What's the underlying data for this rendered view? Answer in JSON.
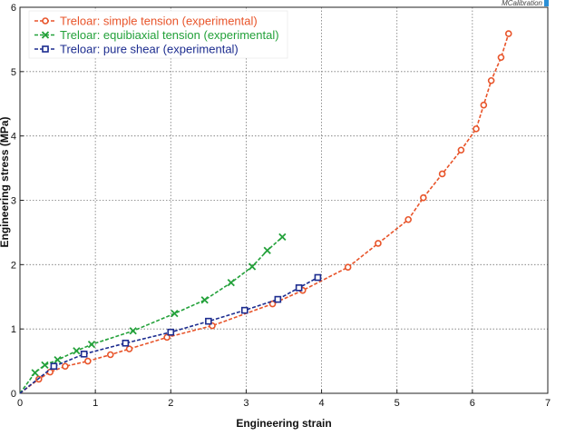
{
  "chart_data": {
    "type": "line",
    "title": "",
    "xlabel": "Engineering strain",
    "ylabel": "Engineering stress (MPa)",
    "xlim": [
      0,
      7
    ],
    "ylim": [
      0,
      6
    ],
    "xticks": [
      0,
      1,
      2,
      3,
      4,
      5,
      6,
      7
    ],
    "yticks": [
      0,
      1,
      2,
      3,
      4,
      5,
      6
    ],
    "grid": true,
    "legend_position": "top-left",
    "brand": "MCalibration",
    "series": [
      {
        "name": "Treloar: simple tension (experimental)",
        "color": "#e8542a",
        "marker": "circle",
        "points": [
          [
            0,
            0
          ],
          [
            0.25,
            0.22
          ],
          [
            0.4,
            0.33
          ],
          [
            0.6,
            0.42
          ],
          [
            0.9,
            0.5
          ],
          [
            1.2,
            0.6
          ],
          [
            1.45,
            0.69
          ],
          [
            1.95,
            0.87
          ],
          [
            2.55,
            1.05
          ],
          [
            3.35,
            1.39
          ],
          [
            3.75,
            1.6
          ],
          [
            4.35,
            1.96
          ],
          [
            4.75,
            2.33
          ],
          [
            5.15,
            2.7
          ],
          [
            5.35,
            3.04
          ],
          [
            5.6,
            3.41
          ],
          [
            5.85,
            3.78
          ],
          [
            6.05,
            4.11
          ],
          [
            6.15,
            4.48
          ],
          [
            6.25,
            4.86
          ],
          [
            6.38,
            5.22
          ],
          [
            6.48,
            5.59
          ]
        ]
      },
      {
        "name": "Treloar: equibiaxial tension (experimental)",
        "color": "#23a13a",
        "marker": "x",
        "points": [
          [
            0,
            0
          ],
          [
            0.2,
            0.32
          ],
          [
            0.33,
            0.44
          ],
          [
            0.5,
            0.52
          ],
          [
            0.75,
            0.66
          ],
          [
            0.95,
            0.76
          ],
          [
            1.5,
            0.97
          ],
          [
            2.05,
            1.24
          ],
          [
            2.45,
            1.45
          ],
          [
            2.8,
            1.72
          ],
          [
            3.08,
            1.97
          ],
          [
            3.28,
            2.22
          ],
          [
            3.48,
            2.43
          ]
        ]
      },
      {
        "name": "Treloar: pure shear (experimental)",
        "color": "#1c2c8f",
        "marker": "square",
        "points": [
          [
            0,
            0
          ],
          [
            0.45,
            0.42
          ],
          [
            0.85,
            0.61
          ],
          [
            1.4,
            0.78
          ],
          [
            2.0,
            0.95
          ],
          [
            2.5,
            1.12
          ],
          [
            2.98,
            1.29
          ],
          [
            3.42,
            1.46
          ],
          [
            3.7,
            1.64
          ],
          [
            3.95,
            1.8
          ]
        ]
      }
    ]
  }
}
